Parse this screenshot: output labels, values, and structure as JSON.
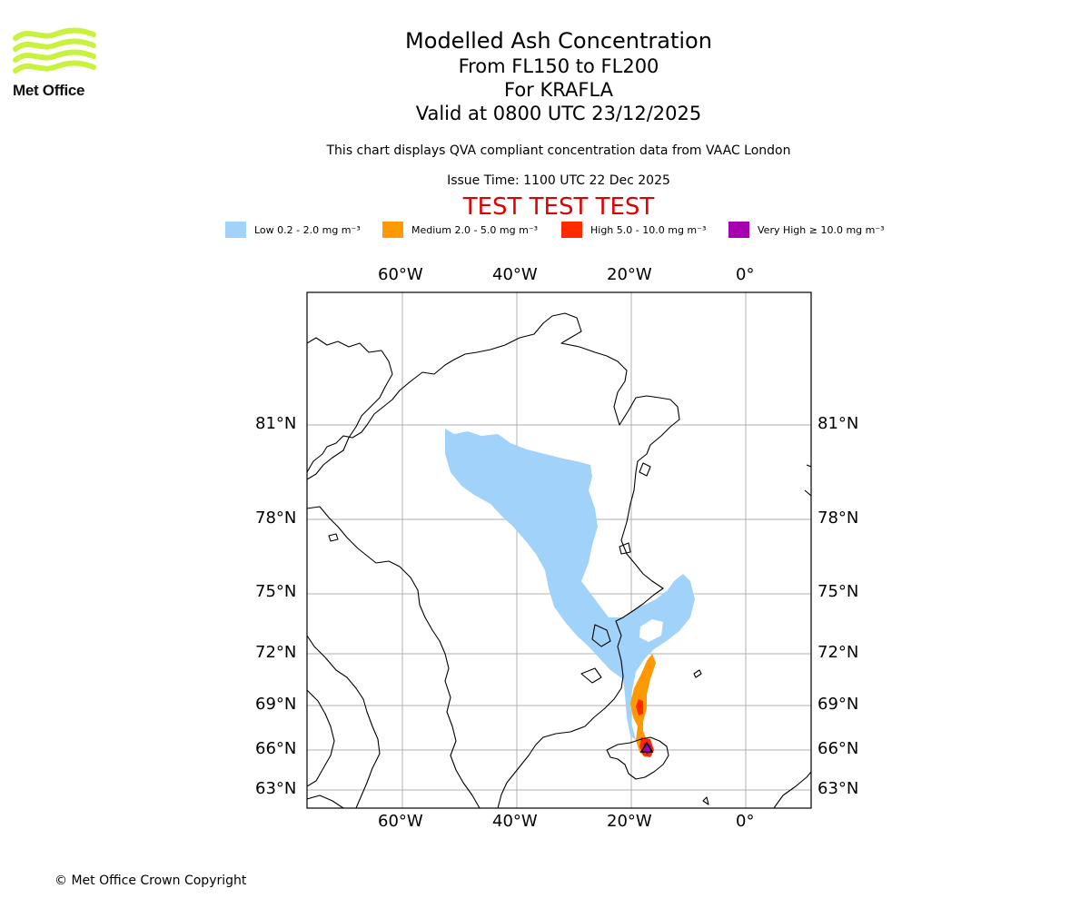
{
  "logo": {
    "text": "Met Office",
    "icon": "met-office-waves-icon",
    "color": "#c8f23c"
  },
  "title": {
    "line1": "Modelled Ash Concentration",
    "line2": "From FL150 to FL200",
    "line3": "For KRAFLA",
    "line4": "Valid at 0800 UTC 23/12/2025"
  },
  "subtitle": "This chart displays QVA compliant concentration data from VAAC London",
  "issue_time": "Issue Time: 1100 UTC 22 Dec 2025",
  "test_banner": {
    "text": "TEST TEST TEST",
    "color": "#e00000"
  },
  "legend": [
    {
      "label": "Low 0.2 - 2.0 mg m⁻³",
      "color": "#a0d2fa"
    },
    {
      "label": "Medium 2.0 - 5.0 mg m⁻³",
      "color": "#fe9904"
    },
    {
      "label": "High 5.0 - 10.0 mg m⁻³",
      "color": "#ff2b00"
    },
    {
      "label": "Very High  ≥  10.0 mg m⁻³",
      "color": "#a600b0"
    }
  ],
  "axes": {
    "lon_labels": [
      "60°W",
      "40°W",
      "20°W",
      "0°"
    ],
    "lat_labels": [
      "81°N",
      "78°N",
      "75°N",
      "72°N",
      "69°N",
      "66°N",
      "63°N"
    ]
  },
  "volcano": {
    "name": "KRAFLA",
    "marker": "volcano-triangle-icon"
  },
  "copyright": "© Met Office Crown Copyright"
}
